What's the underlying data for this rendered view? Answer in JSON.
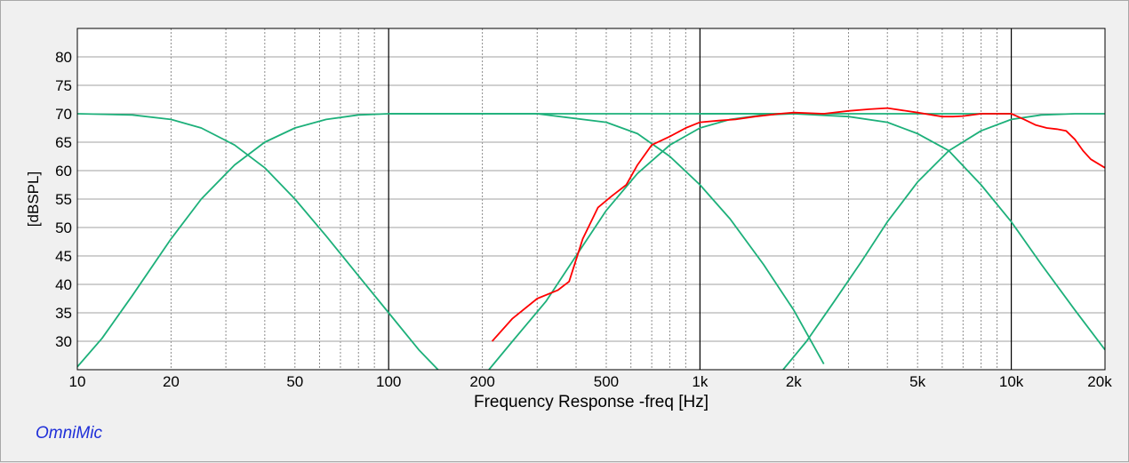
{
  "brand": "OmniMic",
  "colors": {
    "green": "#1db07a",
    "red": "#ff0000",
    "grid_major": "#000000",
    "grid_minor": "#8c8c8c",
    "brand": "#1f2fd9"
  },
  "chart_data": {
    "type": "line",
    "xlabel": "Frequency Response -freq [Hz]",
    "ylabel": "[dBSPL]",
    "x_scale": "log",
    "xlim": [
      10,
      20000
    ],
    "ylim": [
      25,
      85
    ],
    "x_ticks": [
      {
        "v": 10,
        "label": "10"
      },
      {
        "v": 20,
        "label": "20"
      },
      {
        "v": 50,
        "label": "50"
      },
      {
        "v": 100,
        "label": "100"
      },
      {
        "v": 200,
        "label": "200"
      },
      {
        "v": 500,
        "label": "500"
      },
      {
        "v": 1000,
        "label": "1k"
      },
      {
        "v": 2000,
        "label": "2k"
      },
      {
        "v": 5000,
        "label": "5k"
      },
      {
        "v": 10000,
        "label": "10k"
      },
      {
        "v": 20000,
        "label": "20k"
      }
    ],
    "y_ticks": [
      30,
      35,
      40,
      45,
      50,
      55,
      60,
      65,
      70,
      75,
      80
    ],
    "grid": true,
    "series": [
      {
        "color": "#1db07a",
        "x": [
          10,
          15,
          20,
          25,
          32,
          40,
          50,
          63,
          80,
          100,
          125,
          150
        ],
        "y": [
          70,
          69.8,
          69,
          67.5,
          64.5,
          60.5,
          55,
          48.5,
          41.5,
          35,
          28.5,
          24
        ]
      },
      {
        "color": "#1db07a",
        "x": [
          10,
          12,
          15,
          20,
          25,
          32,
          40,
          50,
          63,
          80,
          100,
          200,
          500,
          700,
          1000,
          2000
        ],
        "y": [
          25.5,
          30.5,
          38,
          48,
          55,
          61,
          65,
          67.5,
          69,
          69.8,
          70,
          70,
          70,
          70,
          70,
          70
        ]
      },
      {
        "color": "#1db07a",
        "x": [
          100,
          300,
          500,
          630,
          800,
          1000,
          1250,
          1600,
          2000,
          2500
        ],
        "y": [
          70,
          70,
          68.5,
          66.5,
          62.5,
          57.5,
          51.5,
          43.5,
          35.5,
          26
        ]
      },
      {
        "color": "#1db07a",
        "x": [
          210,
          250,
          320,
          400,
          500,
          630,
          800,
          1000,
          1250,
          1600,
          2000,
          3000,
          5000,
          10000
        ],
        "y": [
          25,
          30,
          37,
          45,
          53,
          59.5,
          64.5,
          67.5,
          69,
          69.8,
          70,
          70,
          70,
          70
        ]
      },
      {
        "color": "#1db07a",
        "x": [
          1000,
          2000,
          3000,
          4000,
          5000,
          6300,
          8000,
          10000,
          12500,
          16000,
          20000
        ],
        "y": [
          70,
          70,
          69.5,
          68.5,
          66.5,
          63.5,
          57.5,
          51,
          43.5,
          35.5,
          28.5
        ]
      },
      {
        "color": "#1db07a",
        "x": [
          1850,
          2200,
          2700,
          3300,
          4000,
          5000,
          6300,
          8000,
          10000,
          12500,
          16000,
          20000
        ],
        "y": [
          25,
          30,
          37,
          44,
          51,
          58,
          63.5,
          67,
          69,
          69.8,
          70,
          70
        ]
      },
      {
        "color": "#ff0000",
        "x": [
          215,
          250,
          300,
          350,
          380,
          420,
          470,
          520,
          580,
          630,
          700,
          800,
          900,
          1000,
          1150,
          1300,
          1500,
          1800,
          2000,
          2500,
          3000,
          3500,
          4000,
          5000,
          6000,
          6500,
          7000,
          8000,
          9000,
          10000,
          11000,
          12000,
          13000,
          14000,
          15000,
          16000,
          17000,
          18000,
          20000
        ],
        "y": [
          30,
          34,
          37.5,
          39,
          40.5,
          48,
          53.5,
          55.5,
          57.5,
          61,
          64.5,
          66,
          67.5,
          68.5,
          68.8,
          69,
          69.5,
          70,
          70.2,
          70,
          70.5,
          70.8,
          71,
          70.2,
          69.5,
          69.5,
          69.6,
          70,
          70,
          70,
          69,
          68,
          67.5,
          67.3,
          67,
          65.5,
          63.5,
          62,
          60.5
        ]
      }
    ]
  }
}
